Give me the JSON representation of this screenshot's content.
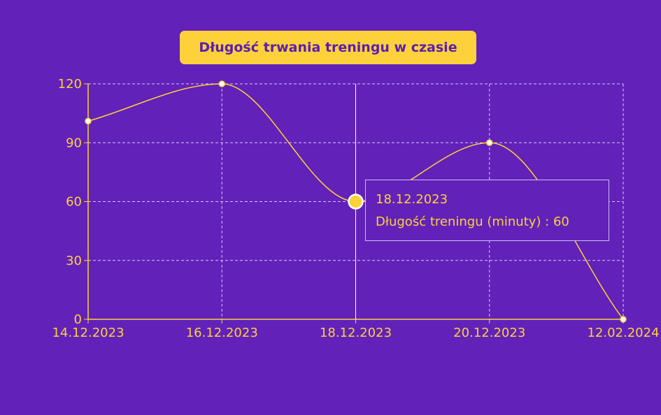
{
  "chart_data": {
    "type": "line",
    "title": "Długość trwania treningu w czasie",
    "categories": [
      "14.12.2023",
      "16.12.2023",
      "18.12.2023",
      "20.12.2023",
      "12.02.2024"
    ],
    "series": [
      {
        "name": "Długość treningu (minuty)",
        "values": [
          101,
          120,
          60,
          90,
          0
        ]
      }
    ],
    "ylim": [
      0,
      120
    ],
    "yticks": [
      0,
      30,
      60,
      90,
      120
    ],
    "grid": true,
    "line_color": "#fdd13a",
    "background": "#6221b8"
  },
  "tooltip": {
    "date": "18.12.2023",
    "text": "Długość treningu (minuty) : 60",
    "active_index": 2
  }
}
